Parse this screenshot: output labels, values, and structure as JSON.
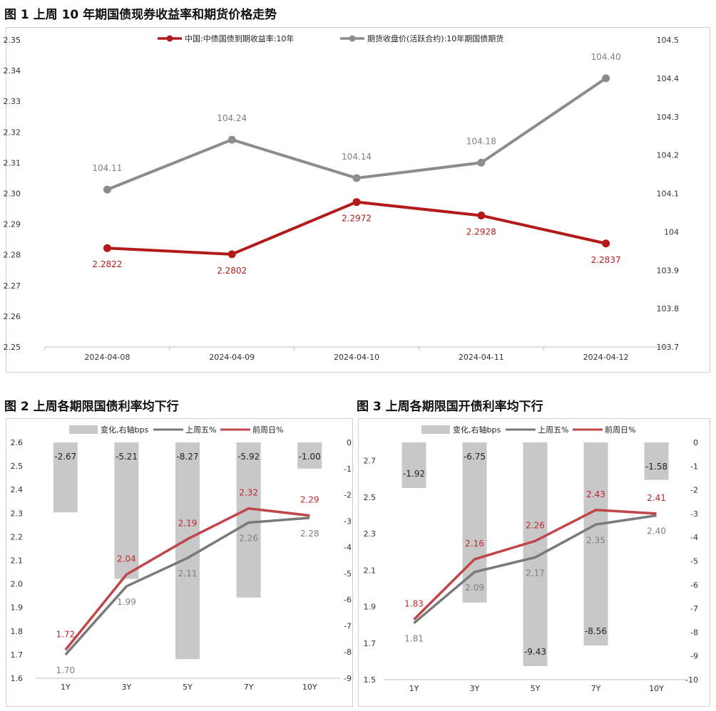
{
  "figures": [
    {
      "title": "图 1  上周 10 年期国债现券收益率和期货价格走势"
    },
    {
      "title": "图 2  上周各期限国债利率均下行"
    },
    {
      "title": "图 3  上周各期限国开债利率均下行"
    }
  ],
  "chart_data": [
    {
      "type": "line",
      "title": "图 1  上周 10 年期国债现券收益率和期货价格走势",
      "categories": [
        "2024-04-08",
        "2024-04-09",
        "2024-04-10",
        "2024-04-11",
        "2024-04-12"
      ],
      "y_left": {
        "range": [
          2.25,
          2.35
        ],
        "ticks": [
          "2.25",
          "2.26",
          "2.27",
          "2.28",
          "2.29",
          "2.30",
          "2.31",
          "2.32",
          "2.33",
          "2.34",
          "2.35"
        ]
      },
      "y_right": {
        "range": [
          103.7,
          104.5
        ],
        "ticks": [
          "103.7",
          "103.8",
          "103.9",
          "104",
          "104.1",
          "104.2",
          "104.3",
          "104.4",
          "104.5"
        ]
      },
      "series": [
        {
          "name": "中国:中债国债到期收益率:10年",
          "axis": "left",
          "color": "#b31b1b",
          "values": [
            2.2822,
            2.2802,
            2.2972,
            2.2928,
            2.2837
          ],
          "labels": [
            "2.2822",
            "2.2802",
            "2.2972",
            "2.2928",
            "2.2837"
          ]
        },
        {
          "name": "期货收盘价(活跃合约):10年期国债期货",
          "axis": "right",
          "color": "#8c8c8c",
          "values": [
            104.11,
            104.24,
            104.14,
            104.18,
            104.4
          ],
          "labels": [
            "104.11",
            "104.24",
            "104.14",
            "104.18",
            "104.40"
          ]
        }
      ],
      "legend_position": "top"
    },
    {
      "type": "bar+line",
      "title": "图 2  上周各期限国债利率均下行",
      "categories": [
        "1Y",
        "3Y",
        "5Y",
        "7Y",
        "10Y"
      ],
      "y_left": {
        "range": [
          1.6,
          2.6
        ],
        "ticks": [
          "1.6",
          "1.7",
          "1.8",
          "1.9",
          "2.0",
          "2.1",
          "2.2",
          "2.3",
          "2.4",
          "2.5",
          "2.6"
        ]
      },
      "y_right": {
        "range": [
          -9,
          0
        ],
        "ticks": [
          "-9",
          "-8",
          "-7",
          "-6",
          "-5",
          "-4",
          "-3",
          "-2",
          "-1",
          "0"
        ]
      },
      "series": [
        {
          "name": "变化,右轴bps",
          "kind": "bar",
          "axis": "right",
          "color": "#c8c8c8",
          "values": [
            -2.67,
            -5.21,
            -8.27,
            -5.92,
            -1.0
          ],
          "labels": [
            "-2.67",
            "-5.21",
            "-8.27",
            "-5.92",
            "-1.00"
          ]
        },
        {
          "name": "上周五%",
          "kind": "line",
          "axis": "left",
          "color": "#7a7a7a",
          "values": [
            1.7,
            1.99,
            2.11,
            2.26,
            2.28
          ],
          "labels": [
            "1.70",
            "1.99",
            "2.11",
            "2.26",
            "2.28"
          ]
        },
        {
          "name": "前周日%",
          "kind": "line",
          "axis": "left",
          "color": "#c0464a",
          "values": [
            1.72,
            2.04,
            2.19,
            2.32,
            2.29
          ],
          "labels": [
            "1.72",
            "2.04",
            "2.19",
            "2.32",
            "2.29"
          ]
        }
      ],
      "legend_position": "top"
    },
    {
      "type": "bar+line",
      "title": "图 3  上周各期限国开债利率均下行",
      "categories": [
        "1Y",
        "3Y",
        "5Y",
        "7Y",
        "10Y"
      ],
      "y_left": {
        "range": [
          1.5,
          2.8
        ],
        "ticks": [
          "1.5",
          "1.7",
          "1.9",
          "2.1",
          "2.3",
          "2.5",
          "2.7"
        ]
      },
      "y_right": {
        "range": [
          -10,
          0
        ],
        "ticks": [
          "-10",
          "-9",
          "-8",
          "-7",
          "-6",
          "-5",
          "-4",
          "-3",
          "-2",
          "-1",
          "0"
        ]
      },
      "series": [
        {
          "name": "变化,右轴bps",
          "kind": "bar",
          "axis": "right",
          "color": "#c8c8c8",
          "values": [
            -1.92,
            -6.75,
            -9.43,
            -8.56,
            -1.58
          ],
          "labels": [
            "-1.92",
            "-6.75",
            "-9.43",
            "-8.56",
            "-1.58"
          ]
        },
        {
          "name": "上周五%",
          "kind": "line",
          "axis": "left",
          "color": "#7a7a7a",
          "values": [
            1.81,
            2.09,
            2.17,
            2.35,
            2.4
          ],
          "labels": [
            "1.81",
            "2.09",
            "2.17",
            "2.35",
            "2.40"
          ]
        },
        {
          "name": "前周日%",
          "kind": "line",
          "axis": "left",
          "color": "#c0464a",
          "values": [
            1.83,
            2.16,
            2.26,
            2.43,
            2.41
          ],
          "labels": [
            "1.83",
            "2.16",
            "2.26",
            "2.43",
            "2.41"
          ]
        }
      ],
      "legend_position": "top"
    }
  ]
}
